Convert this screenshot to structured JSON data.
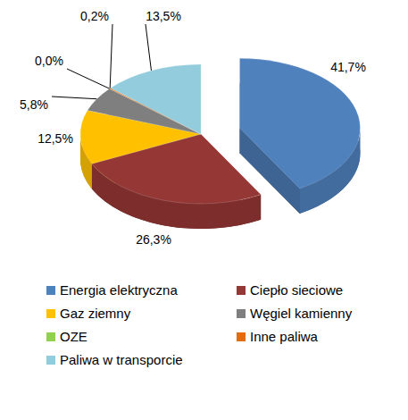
{
  "chart_data": {
    "type": "pie",
    "categories": [
      "Energia elektryczna",
      "Ciepło sieciowe",
      "Gaz ziemny",
      "Węgiel kamienny",
      "OZE",
      "Inne paliwa",
      "Paliwa w transporcie"
    ],
    "values": [
      41.7,
      26.3,
      12.5,
      5.8,
      0.0,
      0.2,
      13.5
    ],
    "value_labels": [
      "41,7%",
      "26,3%",
      "12,5%",
      "5,8%",
      "0,0%",
      "0,2%",
      "13,5%"
    ],
    "colors": [
      "#4f81bd",
      "#953735",
      "#ffc000",
      "#7f7f7f",
      "#92d050",
      "#e46c0a",
      "#93cddd"
    ],
    "data_labels": true,
    "legend": "bottom"
  }
}
